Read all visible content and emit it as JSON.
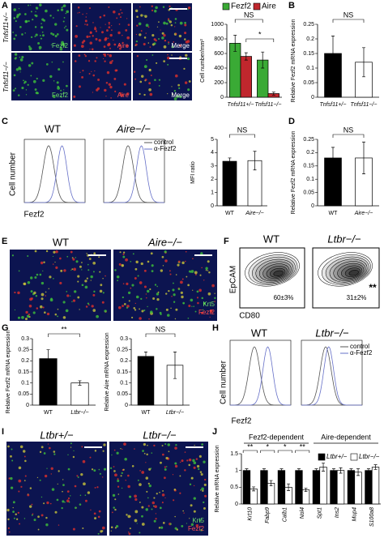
{
  "panel_letters": [
    "A",
    "B",
    "C",
    "D",
    "E",
    "F",
    "G",
    "H",
    "I",
    "J"
  ],
  "panel_a": {
    "row_labels": [
      "Tnfsf11+/−",
      "Tnfsf11−/−"
    ],
    "channel_labels": [
      "Fezf2",
      "Aire",
      "Merge"
    ]
  },
  "panel_c": {
    "titles": [
      "WT",
      "Aire−/−"
    ],
    "legend": [
      "control",
      "α-Fezf2"
    ],
    "ylabel": "Cell number",
    "xlabel": "Fezf2"
  },
  "panel_e": {
    "titles": [
      "WT",
      "Aire−/−"
    ],
    "stains": [
      "Krt5",
      "Fezf2"
    ]
  },
  "panel_f": {
    "titles": [
      "WT",
      "Ltbr−/−"
    ],
    "percentages": [
      "60±3%",
      "31±2%"
    ],
    "significance": "**",
    "ylabel": "EpCAM",
    "xlabel": "CD80"
  },
  "panel_h": {
    "titles": [
      "WT",
      "Ltbr−/−"
    ],
    "legend": [
      "control",
      "α-Fezf2"
    ],
    "ylabel": "Cell number",
    "xlabel": "Fezf2"
  },
  "panel_i": {
    "titles": [
      "Ltbr+/−",
      "Ltbr−/−"
    ],
    "stains": [
      "Krt5",
      "Fezf2"
    ]
  },
  "chart_data": [
    {
      "type": "bar",
      "ylabel": "Cell number/mm²",
      "categories": [
        "Tnfsf11+/−",
        "Tnfsf11−/−"
      ],
      "series": [
        {
          "name": "Fezf2",
          "color": "#3aaa35",
          "values": [
            740,
            510
          ],
          "errors": [
            110,
            110
          ]
        },
        {
          "name": "Aire",
          "color": "#c0272d",
          "values": [
            560,
            50
          ],
          "errors": [
            50,
            20
          ]
        }
      ],
      "ylim": [
        0,
        1000
      ],
      "yticks": [
        0,
        200,
        400,
        600,
        800,
        1000
      ],
      "annotations": [
        "NS",
        "*"
      ]
    },
    {
      "type": "bar",
      "ylabel": "Relative Fezf2 mRNA expression",
      "categories": [
        "Tnfsf11+/−",
        "Tnfsf11−/−"
      ],
      "series": [
        {
          "colors": [
            "#000000",
            "#ffffff"
          ],
          "values": [
            0.15,
            0.12
          ],
          "errors": [
            0.06,
            0.05
          ]
        }
      ],
      "ylim": [
        0,
        0.25
      ],
      "yticks": [
        0,
        0.05,
        0.1,
        0.15,
        0.2,
        0.25
      ],
      "annotations": [
        "NS"
      ]
    },
    {
      "type": "bar",
      "ylabel": "MFI ratio",
      "categories": [
        "WT",
        "Aire−/−"
      ],
      "series": [
        {
          "colors": [
            "#000000",
            "#ffffff"
          ],
          "values": [
            3.35,
            3.4
          ],
          "errors": [
            0.25,
            0.7
          ]
        }
      ],
      "ylim": [
        0,
        5
      ],
      "yticks": [
        0,
        1,
        2,
        3,
        4,
        5
      ],
      "annotations": [
        "NS"
      ]
    },
    {
      "type": "bar",
      "ylabel": "Relative Fezf2 mRNA expression",
      "categories": [
        "WT",
        "Aire−/−"
      ],
      "series": [
        {
          "colors": [
            "#000000",
            "#ffffff"
          ],
          "values": [
            0.18,
            0.18
          ],
          "errors": [
            0.04,
            0.06
          ]
        }
      ],
      "ylim": [
        0,
        0.25
      ],
      "yticks": [
        0,
        0.05,
        0.1,
        0.15,
        0.2,
        0.25
      ],
      "annotations": [
        "NS"
      ]
    },
    {
      "type": "bar",
      "ylabel": "Relative Fezf2 mRNA expression",
      "categories": [
        "WT",
        "Ltbr−/−"
      ],
      "series": [
        {
          "colors": [
            "#000000",
            "#ffffff"
          ],
          "values": [
            0.21,
            0.1
          ],
          "errors": [
            0.04,
            0.01
          ]
        }
      ],
      "ylim": [
        0,
        0.3
      ],
      "yticks": [
        0,
        0.05,
        0.1,
        0.15,
        0.2,
        0.25,
        0.3
      ],
      "annotations": [
        "**"
      ]
    },
    {
      "type": "bar",
      "ylabel": "Relative Aire mRNA expression",
      "categories": [
        "WT",
        "Ltbr−/−"
      ],
      "series": [
        {
          "colors": [
            "#000000",
            "#ffffff"
          ],
          "values": [
            0.22,
            0.18
          ],
          "errors": [
            0.02,
            0.06
          ]
        }
      ],
      "ylim": [
        0,
        0.3
      ],
      "yticks": [
        0,
        0.05,
        0.1,
        0.15,
        0.2,
        0.25,
        0.3
      ],
      "annotations": [
        "NS"
      ]
    },
    {
      "type": "bar",
      "ylabel": "Relative mRNA expression",
      "groups": [
        "Fezf2-dependent",
        "Aire-dependent"
      ],
      "categories": [
        "Krt10",
        "Fabp9",
        "Calb1",
        "Nol4",
        "Spt1",
        "Ins2",
        "Mup4",
        "S100a8"
      ],
      "series": [
        {
          "name": "Ltbr+/−",
          "color": "#000000",
          "values": [
            1,
            1,
            1,
            1,
            1,
            1,
            1,
            1
          ],
          "errors": [
            0.05,
            0.05,
            0.05,
            0.05,
            0.05,
            0.05,
            0.05,
            0.05
          ]
        },
        {
          "name": "Ltbr−/−",
          "color": "#ffffff",
          "values": [
            0.45,
            0.62,
            0.5,
            0.42,
            1.1,
            1.0,
            0.95,
            1.1
          ],
          "errors": [
            0.06,
            0.08,
            0.1,
            0.05,
            0.12,
            0.08,
            0.1,
            0.07
          ]
        }
      ],
      "ylim": [
        0,
        1.5
      ],
      "yticks": [
        0,
        0.5,
        1,
        1.5
      ],
      "annotations": [
        "**",
        "*",
        "*",
        "**"
      ]
    }
  ]
}
